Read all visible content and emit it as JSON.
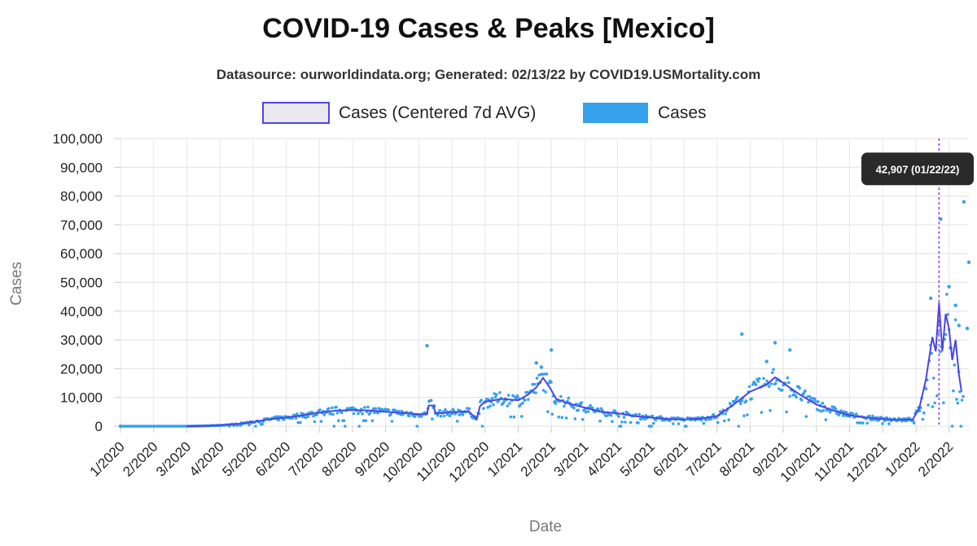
{
  "header": {
    "title": "COVID-19 Cases & Peaks [Mexico]",
    "subtitle": "Datasource: ourworldindata.org; Generated: 02/13/22 by COVID19.USMortality.com"
  },
  "colors": {
    "avg_line": "#4c45e6",
    "avg_fill": "#e8e8ee",
    "cases_dots": "#36a2eb",
    "peak_marker": "#9b30ff",
    "tooltip_bg": "#2a2a2a"
  },
  "chart_data": {
    "type": "line",
    "title": "COVID-19 Cases & Peaks [Mexico]",
    "xlabel": "Date",
    "ylabel": "Cases",
    "ylim": [
      0,
      100000
    ],
    "yticks": [
      0,
      10000,
      20000,
      30000,
      40000,
      50000,
      60000,
      70000,
      80000,
      90000,
      100000
    ],
    "ytick_labels": [
      "0",
      "10,000",
      "20,000",
      "30,000",
      "40,000",
      "50,000",
      "60,000",
      "70,000",
      "80,000",
      "90,000",
      "100,000"
    ],
    "xtick_labels": [
      "1/2020",
      "2/2020",
      "3/2020",
      "4/2020",
      "5/2020",
      "6/2020",
      "7/2020",
      "8/2020",
      "9/2020",
      "10/2020",
      "11/2020",
      "12/2020",
      "1/2021",
      "2/2021",
      "3/2021",
      "4/2021",
      "5/2021",
      "6/2021",
      "7/2021",
      "8/2021",
      "9/2021",
      "10/2021",
      "11/2021",
      "12/2021",
      "1/2022",
      "2/2022"
    ],
    "x_unit": "month index (0 = 1/2020)",
    "grid": true,
    "legend_position": "top-center",
    "series": [
      {
        "name": "Cases (Centered 7d AVG)",
        "style": "line",
        "points": [
          [
            2.0,
            0
          ],
          [
            2.5,
            100
          ],
          [
            3.0,
            300
          ],
          [
            3.5,
            700
          ],
          [
            4.0,
            1500
          ],
          [
            4.5,
            2400
          ],
          [
            5.0,
            3000
          ],
          [
            5.5,
            3800
          ],
          [
            6.0,
            4700
          ],
          [
            6.5,
            5400
          ],
          [
            7.0,
            5600
          ],
          [
            7.5,
            5500
          ],
          [
            8.0,
            5000
          ],
          [
            8.5,
            4600
          ],
          [
            9.0,
            4200
          ],
          [
            9.25,
            4200
          ],
          [
            9.3,
            7200
          ],
          [
            9.45,
            7200
          ],
          [
            9.5,
            4400
          ],
          [
            10.0,
            4800
          ],
          [
            10.5,
            5200
          ],
          [
            10.75,
            2500
          ],
          [
            10.85,
            7000
          ],
          [
            11.0,
            8500
          ],
          [
            11.5,
            9500
          ],
          [
            12.0,
            9000
          ],
          [
            12.3,
            11000
          ],
          [
            12.55,
            13500
          ],
          [
            12.75,
            16800
          ],
          [
            12.95,
            13500
          ],
          [
            13.15,
            9500
          ],
          [
            13.5,
            8000
          ],
          [
            14.0,
            6500
          ],
          [
            14.5,
            5000
          ],
          [
            15.0,
            4500
          ],
          [
            15.5,
            3500
          ],
          [
            16.0,
            3000
          ],
          [
            16.5,
            2500
          ],
          [
            17.0,
            2300
          ],
          [
            17.5,
            2600
          ],
          [
            18.0,
            3500
          ],
          [
            18.5,
            7500
          ],
          [
            19.0,
            12000
          ],
          [
            19.5,
            14500
          ],
          [
            19.75,
            17000
          ],
          [
            20.0,
            15000
          ],
          [
            20.5,
            11000
          ],
          [
            21.0,
            7500
          ],
          [
            21.5,
            5500
          ],
          [
            22.0,
            3800
          ],
          [
            22.5,
            3000
          ],
          [
            23.0,
            2500
          ],
          [
            23.5,
            2200
          ],
          [
            23.9,
            2300
          ],
          [
            24.1,
            6000
          ],
          [
            24.3,
            16000
          ],
          [
            24.5,
            31000
          ],
          [
            24.6,
            26000
          ],
          [
            24.7,
            42907
          ],
          [
            24.8,
            26000
          ],
          [
            24.9,
            39000
          ],
          [
            25.0,
            34000
          ],
          [
            25.1,
            23000
          ],
          [
            25.2,
            30000
          ],
          [
            25.3,
            18000
          ],
          [
            25.38,
            12000
          ]
        ]
      },
      {
        "name": "Cases",
        "style": "scatter",
        "notable_points": [
          [
            0.0,
            0
          ],
          [
            9.25,
            28000
          ],
          [
            12.55,
            22000
          ],
          [
            12.7,
            20500
          ],
          [
            13.0,
            26500
          ],
          [
            18.75,
            32000
          ],
          [
            19.5,
            22500
          ],
          [
            19.75,
            29000
          ],
          [
            20.2,
            26500
          ],
          [
            24.45,
            44500
          ],
          [
            24.75,
            72000
          ],
          [
            25.0,
            48500
          ],
          [
            25.2,
            42000
          ],
          [
            25.3,
            35000
          ],
          [
            25.45,
            78000
          ],
          [
            25.6,
            57000
          ],
          [
            25.55,
            34000
          ]
        ]
      }
    ],
    "annotations": [
      {
        "type": "peak-line",
        "x": 24.7,
        "label": "42,907 (01/22/22)"
      }
    ]
  }
}
